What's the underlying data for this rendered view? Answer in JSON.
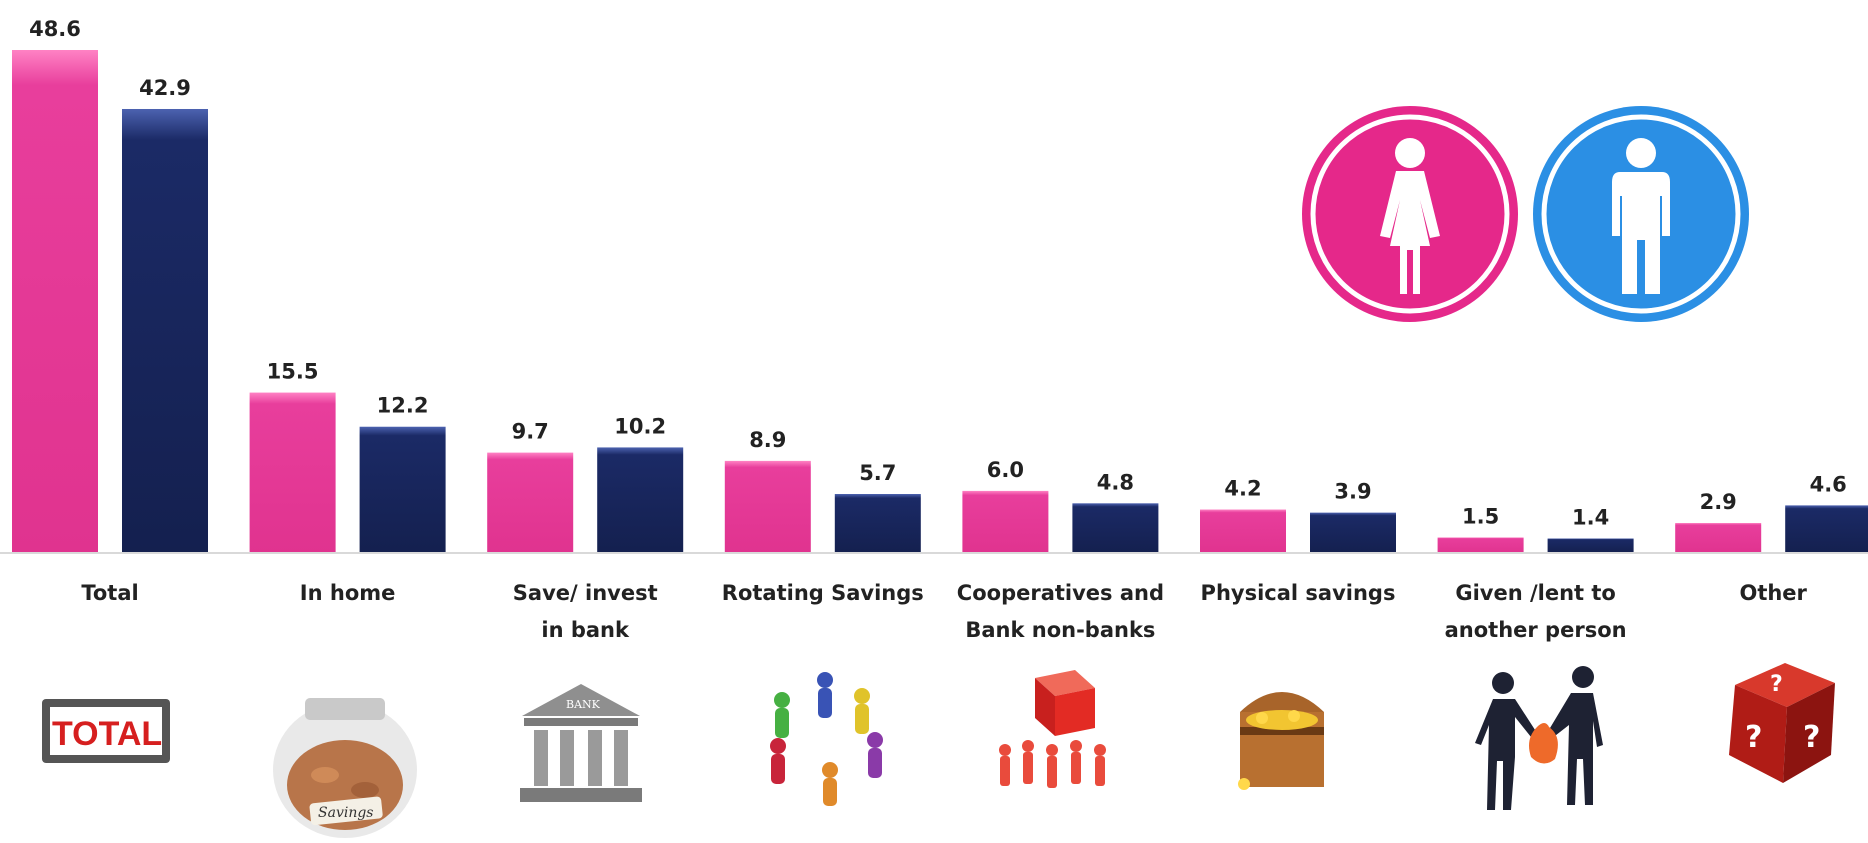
{
  "chart_data": {
    "type": "bar",
    "categories": [
      [
        "Total"
      ],
      [
        "In home"
      ],
      [
        "Save/ invest",
        "in bank"
      ],
      [
        "Rotating Savings"
      ],
      [
        "Cooperatives and",
        "Bank non-banks"
      ],
      [
        "Physical savings"
      ],
      [
        "Given /lent to",
        "another person"
      ],
      [
        "Other"
      ]
    ],
    "series": [
      {
        "values": [
          48.6,
          15.5,
          9.7,
          8.9,
          6.0,
          4.2,
          1.5,
          2.9
        ],
        "color": "#e83e9c"
      },
      {
        "values": [
          42.9,
          12.2,
          10.2,
          5.7,
          4.8,
          3.9,
          1.4,
          4.6
        ],
        "color": "#1b2a66"
      }
    ],
    "value_labels": [
      [
        "48.6",
        "15.5",
        "9.7",
        "8.9",
        "6.0",
        "4.2",
        "1.5",
        "2.9"
      ],
      [
        "42.9",
        "12.2",
        "10.2",
        "5.7",
        "4.8",
        "3.9",
        "1.4",
        "4.6"
      ]
    ],
    "ylim": [
      0,
      48.6
    ],
    "grid": false,
    "legend": "top-right",
    "legend_icons": [
      "female-icon",
      "male-icon"
    ],
    "legend_colors": [
      "#e83e9c",
      "#2b8fe4"
    ]
  },
  "icons": {
    "total_sign": "TOTAL",
    "savings_jar": "Savings",
    "bank_sign": "BANK"
  }
}
